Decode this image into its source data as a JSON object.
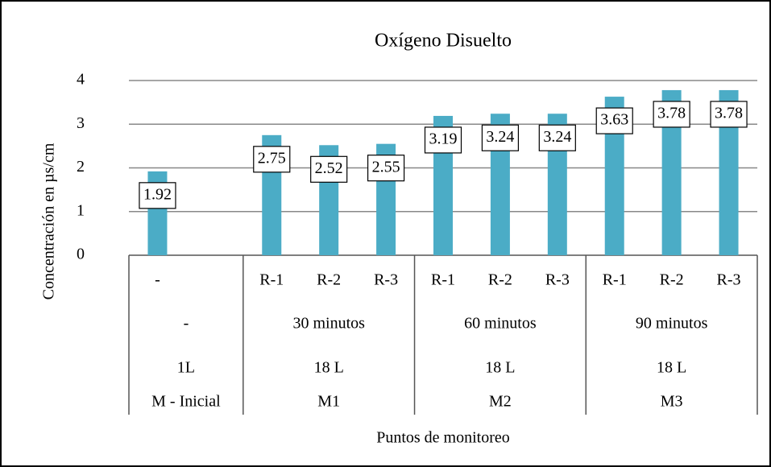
{
  "chart_data": {
    "type": "bar",
    "title": "Oxígeno Disuelto",
    "y_label": "Concentración en µs/cm",
    "x_label": "Puntos de monitoreo",
    "color": "#4bacc6",
    "ylim": [
      0,
      4
    ],
    "yticks": [
      0,
      1,
      2,
      3,
      4
    ],
    "grid": true,
    "groups": [
      {
        "label": "M - Inicial",
        "volume": "1L",
        "time": "-",
        "categories": [
          "-",
          null
        ],
        "values": [
          1.92,
          null
        ]
      },
      {
        "label": "M1",
        "volume": "18 L",
        "time": "30 minutos",
        "categories": [
          "R-1",
          "R-2",
          "R-3"
        ],
        "values": [
          2.75,
          2.52,
          2.55
        ]
      },
      {
        "label": "M2",
        "volume": "18 L",
        "time": "60 minutos",
        "categories": [
          "R-1",
          "R-2",
          "R-3"
        ],
        "values": [
          3.19,
          3.24,
          3.24
        ]
      },
      {
        "label": "M3",
        "volume": "18 L",
        "time": "90 minutos",
        "categories": [
          "R-1",
          "R-2",
          "R-3"
        ],
        "values": [
          3.63,
          3.78,
          3.78
        ]
      }
    ]
  }
}
